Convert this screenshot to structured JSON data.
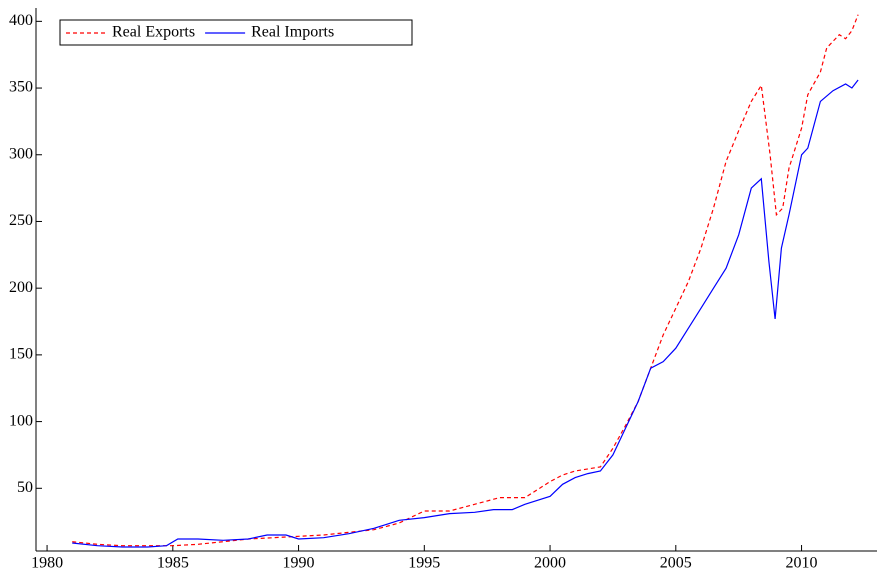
{
  "chart_data": {
    "type": "line",
    "xlim": [
      1979.56,
      2013
    ],
    "ylim": [
      3,
      410
    ],
    "xticks": [
      1980,
      1985,
      1990,
      1995,
      2000,
      2005,
      2010
    ],
    "yticks": [
      50,
      100,
      150,
      200,
      250,
      300,
      350,
      400
    ],
    "legend": "top-left",
    "series": [
      {
        "name": "Real Exports",
        "color": "#ff0000",
        "dashed": true,
        "x": [
          1981,
          1982,
          1983,
          1984,
          1985,
          1986,
          1987,
          1988,
          1989,
          1990,
          1991,
          1992,
          1993,
          1994,
          1995,
          1996,
          1997,
          1998,
          1999,
          2000,
          2000.5,
          2001,
          2002,
          2002.5,
          2003,
          2003.5,
          2004,
          2004.5,
          2005,
          2005.5,
          2006,
          2006.5,
          2007,
          2007.5,
          2008,
          2008.4,
          2008.75,
          2009,
          2009.25,
          2009.5,
          2010,
          2010.25,
          2010.75,
          2011,
          2011.5,
          2011.75,
          2012,
          2012.25
        ],
        "values": [
          10,
          8,
          7,
          7,
          7,
          8,
          10,
          12,
          13,
          14,
          15,
          17,
          19,
          24,
          33,
          33,
          38,
          43,
          43,
          55,
          60,
          63,
          66,
          80,
          97,
          115,
          140,
          165,
          185,
          205,
          230,
          260,
          295,
          318,
          340,
          352,
          300,
          255,
          260,
          290,
          320,
          345,
          362,
          380,
          390,
          387,
          393,
          405
        ]
      },
      {
        "name": "Real Imports",
        "color": "#0000ff",
        "dashed": false,
        "x": [
          1981,
          1982,
          1983,
          1984,
          1984.75,
          1985.2,
          1986,
          1987,
          1988,
          1988.75,
          1989.5,
          1990,
          1991,
          1992,
          1993,
          1994,
          1995,
          1996,
          1997,
          1997.75,
          1998.5,
          1999,
          2000,
          2000.5,
          2001,
          2001.5,
          2002,
          2002.5,
          2003,
          2003.5,
          2004,
          2004.5,
          2005,
          2005.5,
          2006,
          2006.5,
          2007,
          2007.5,
          2008,
          2008.4,
          2008.7,
          2008.95,
          2009.2,
          2009.5,
          2010,
          2010.25,
          2010.75,
          2011.25,
          2011.75,
          2012,
          2012.25
        ],
        "values": [
          9,
          7,
          6,
          6,
          7,
          12,
          12,
          11,
          12,
          15,
          15,
          12,
          13,
          16,
          20,
          26,
          28,
          31,
          32,
          34,
          34,
          38,
          44,
          53,
          58,
          61,
          63,
          75,
          95,
          115,
          140,
          145,
          155,
          170,
          185,
          200,
          215,
          240,
          275,
          282,
          220,
          177,
          230,
          255,
          300,
          305,
          340,
          348,
          353,
          350,
          356
        ]
      }
    ]
  }
}
